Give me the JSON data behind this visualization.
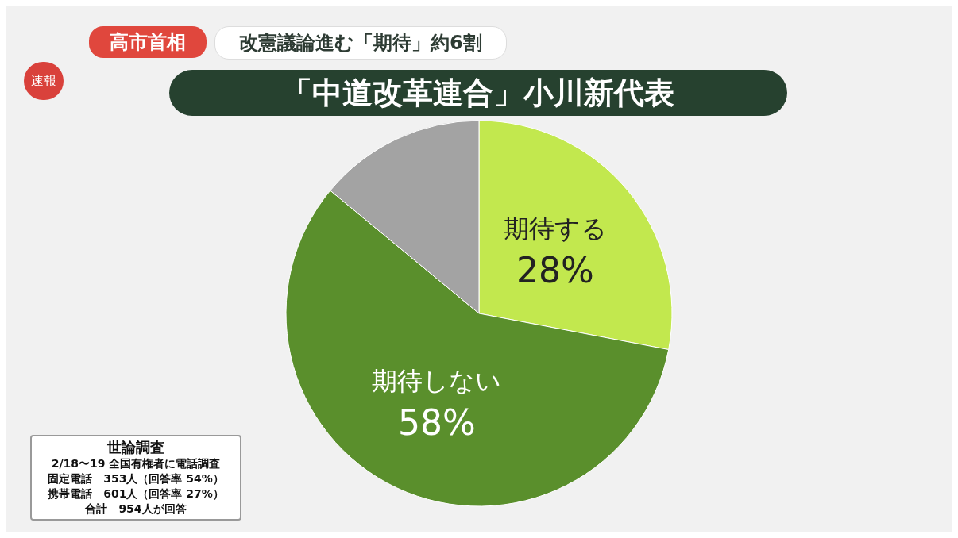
{
  "chart_data": {
    "type": "pie",
    "title": "「中道改革連合」小川新代表",
    "subtitle": "改憲議論進む「期待」約6割",
    "categories": [
      "期待する",
      "期待しない",
      null
    ],
    "values": [
      28,
      58,
      14
    ],
    "value_labels": [
      "28%",
      "58%",
      null
    ],
    "colors": [
      "#c2e84e",
      "#5a8f2c",
      "#a3a3a3"
    ],
    "legend": false,
    "annotations": [
      "速報",
      "高市首相",
      "世論調査",
      "2/18〜19 全国有権者に電話調査",
      "固定電話　353人（回答率 54%）",
      "携帯電話　601人（回答率 27%）",
      "合計　954人が回答"
    ]
  }
}
